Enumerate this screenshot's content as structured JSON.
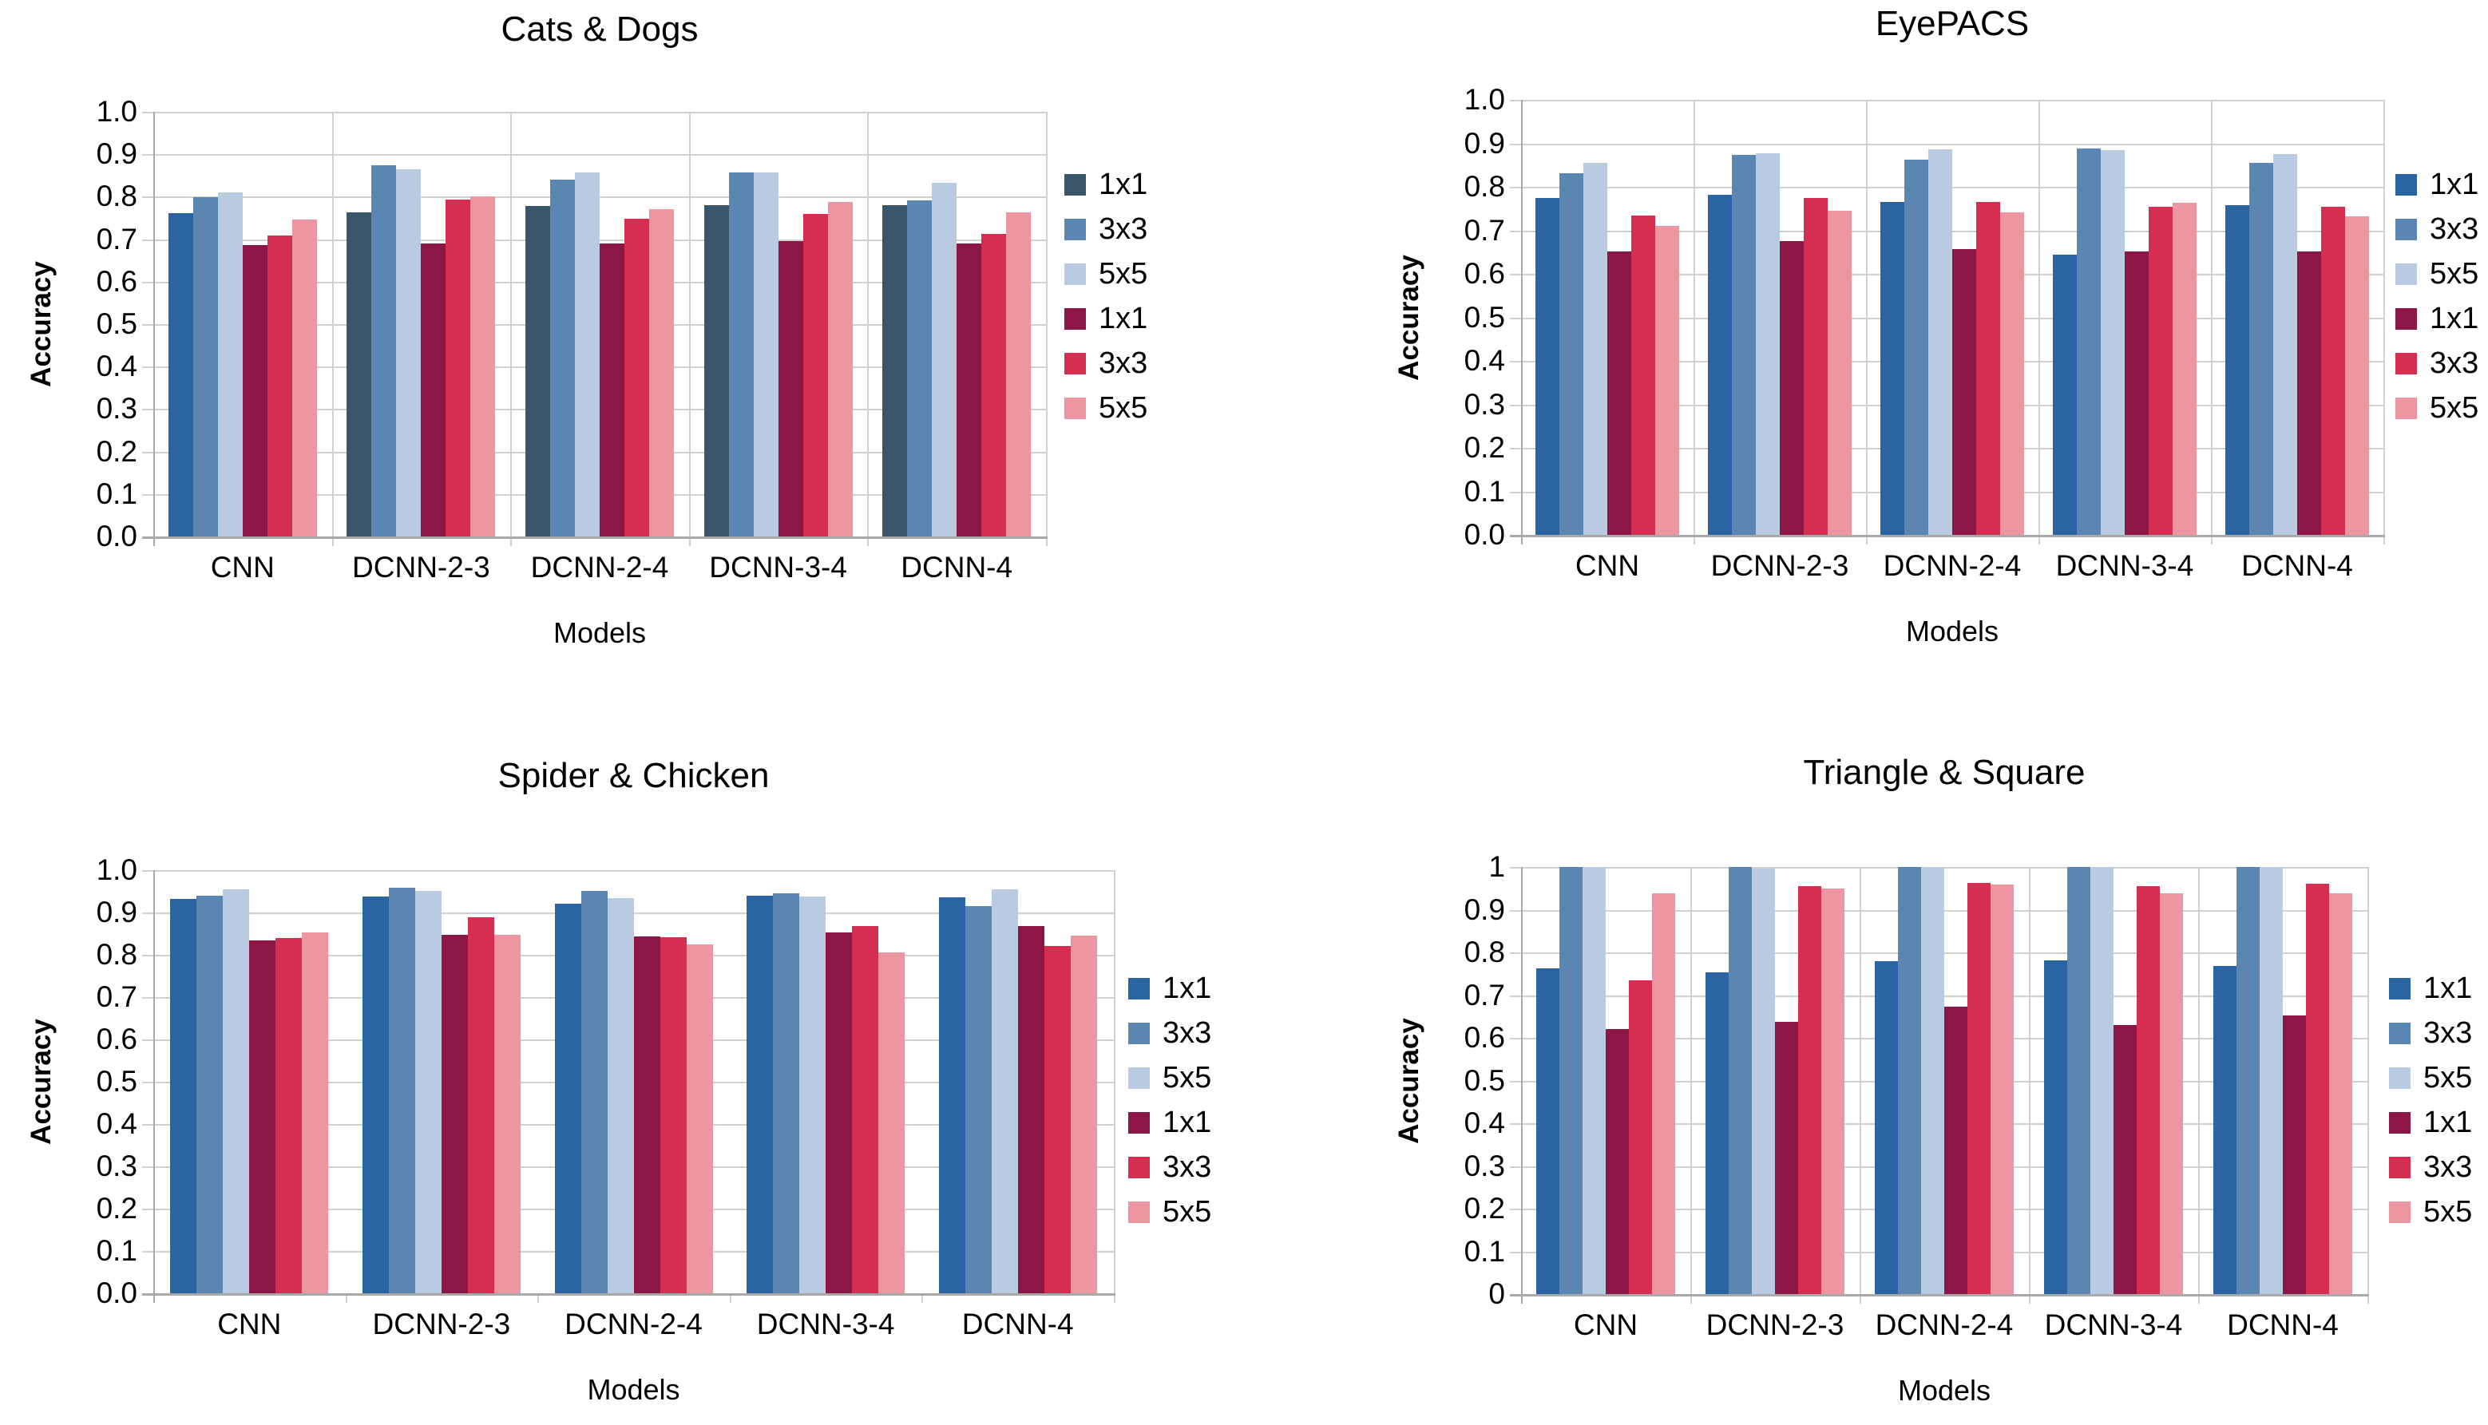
{
  "chart_data": [
    {
      "type": "bar",
      "title": "Cats & Dogs",
      "xlabel": "Models",
      "ylabel": "Accuracy",
      "categories": [
        "CNN",
        "DCNN-2-3",
        "DCNN-2-4",
        "DCNN-3-4",
        "DCNN-4"
      ],
      "ytick_labels": [
        "1.0",
        "0.9",
        "0.8",
        "0.7",
        "0.6",
        "0.5",
        "0.4",
        "0.3",
        "0.2",
        "0.1",
        "0.0"
      ],
      "ylim": [
        0,
        1.0
      ],
      "grid": "horizontal",
      "legend_position": "right",
      "series": [
        {
          "name": "1x1",
          "color": "#3B5668",
          "values": [
            0.762,
            0.763,
            0.778,
            0.78,
            0.78
          ]
        },
        {
          "name": "3x3",
          "color": "#5C86B2",
          "values": [
            0.799,
            0.874,
            0.84,
            0.858,
            0.791
          ]
        },
        {
          "name": "5x5",
          "color": "#B9CBE1",
          "values": [
            0.811,
            0.864,
            0.857,
            0.858,
            0.833
          ]
        },
        {
          "name": "1x1",
          "color": "#8C1747",
          "values": [
            0.687,
            0.69,
            0.689,
            0.695,
            0.69
          ]
        },
        {
          "name": "3x3",
          "color": "#D62E50",
          "values": [
            0.709,
            0.793,
            0.749,
            0.76,
            0.712
          ]
        },
        {
          "name": "5x5",
          "color": "#EB96A1",
          "values": [
            0.747,
            0.8,
            0.771,
            0.787,
            0.764
          ]
        }
      ],
      "bar_color_overrides": [
        {
          "series": 0,
          "category": 0,
          "color": "#2B64A3"
        }
      ]
    },
    {
      "type": "bar",
      "title": "EyePACS",
      "xlabel": "Models",
      "ylabel": "Accuracy",
      "categories": [
        "CNN",
        "DCNN-2-3",
        "DCNN-2-4",
        "DCNN-3-4",
        "DCNN-4"
      ],
      "ytick_labels": [
        "1.0",
        "0.9",
        "0.8",
        "0.7",
        "0.6",
        "0.5",
        "0.4",
        "0.3",
        "0.2",
        "0.1",
        "0.0"
      ],
      "ylim": [
        0,
        1.0
      ],
      "grid": "horizontal",
      "legend_position": "right",
      "series": [
        {
          "name": "1x1",
          "color": "#2B64A3",
          "values": [
            0.775,
            0.781,
            0.766,
            0.644,
            0.757
          ]
        },
        {
          "name": "3x3",
          "color": "#5C86B2",
          "values": [
            0.831,
            0.873,
            0.862,
            0.888,
            0.855
          ]
        },
        {
          "name": "5x5",
          "color": "#B9CBE1",
          "values": [
            0.855,
            0.877,
            0.887,
            0.885,
            0.876
          ]
        },
        {
          "name": "1x1",
          "color": "#8C1747",
          "values": [
            0.652,
            0.676,
            0.657,
            0.651,
            0.651
          ]
        },
        {
          "name": "3x3",
          "color": "#D62E50",
          "values": [
            0.734,
            0.775,
            0.765,
            0.754,
            0.755
          ]
        },
        {
          "name": "5x5",
          "color": "#EB96A1",
          "values": [
            0.71,
            0.745,
            0.741,
            0.763,
            0.733
          ]
        }
      ],
      "bar_color_overrides": []
    },
    {
      "type": "bar",
      "title": "Spider & Chicken",
      "xlabel": "Models",
      "ylabel": "Accuracy",
      "categories": [
        "CNN",
        "DCNN-2-3",
        "DCNN-2-4",
        "DCNN-3-4",
        "DCNN-4"
      ],
      "ytick_labels": [
        "1.0",
        "0.9",
        "0.8",
        "0.7",
        "0.6",
        "0.5",
        "0.4",
        "0.3",
        "0.2",
        "0.1",
        "0.0"
      ],
      "ylim": [
        0,
        1.0
      ],
      "grid": "horizontal",
      "legend_position": "right",
      "series": [
        {
          "name": "1x1",
          "color": "#2B64A3",
          "values": [
            0.933,
            0.938,
            0.92,
            0.939,
            0.936
          ]
        },
        {
          "name": "3x3",
          "color": "#5C86B2",
          "values": [
            0.94,
            0.958,
            0.95,
            0.945,
            0.915
          ]
        },
        {
          "name": "5x5",
          "color": "#B9CBE1",
          "values": [
            0.954,
            0.95,
            0.934,
            0.937,
            0.955
          ]
        },
        {
          "name": "1x1",
          "color": "#8C1747",
          "values": [
            0.834,
            0.848,
            0.843,
            0.853,
            0.867
          ]
        },
        {
          "name": "3x3",
          "color": "#D62E50",
          "values": [
            0.839,
            0.888,
            0.842,
            0.868,
            0.82
          ]
        },
        {
          "name": "5x5",
          "color": "#EB96A1",
          "values": [
            0.852,
            0.848,
            0.825,
            0.806,
            0.846
          ]
        }
      ],
      "bar_color_overrides": []
    },
    {
      "type": "bar",
      "title": "Triangle & Square",
      "xlabel": "Models",
      "ylabel": "Accuracy",
      "categories": [
        "CNN",
        "DCNN-2-3",
        "DCNN-2-4",
        "DCNN-3-4",
        "DCNN-4"
      ],
      "ytick_labels": [
        "1",
        "0.9",
        "0.8",
        "0.7",
        "0.6",
        "0.5",
        "0.4",
        "0.3",
        "0.2",
        "0.1",
        "0"
      ],
      "ylim": [
        0,
        1.0
      ],
      "grid": "horizontal",
      "legend_position": "right",
      "series": [
        {
          "name": "1x1",
          "color": "#2B64A3",
          "values": [
            0.763,
            0.753,
            0.779,
            0.781,
            0.769
          ]
        },
        {
          "name": "3x3",
          "color": "#5C86B2",
          "values": [
            1.0,
            1.0,
            1.0,
            1.0,
            1.0
          ]
        },
        {
          "name": "5x5",
          "color": "#B9CBE1",
          "values": [
            1.0,
            0.996,
            1.0,
            1.0,
            1.0
          ]
        },
        {
          "name": "1x1",
          "color": "#8C1747",
          "values": [
            0.62,
            0.637,
            0.672,
            0.629,
            0.653
          ]
        },
        {
          "name": "3x3",
          "color": "#D62E50",
          "values": [
            0.734,
            0.956,
            0.963,
            0.956,
            0.96
          ]
        },
        {
          "name": "5x5",
          "color": "#EB96A1",
          "values": [
            0.938,
            0.949,
            0.959,
            0.938,
            0.938
          ]
        }
      ],
      "bar_color_overrides": []
    }
  ]
}
